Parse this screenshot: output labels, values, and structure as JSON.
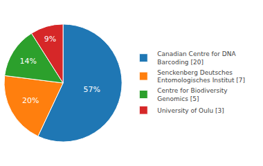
{
  "chart_data": {
    "type": "pie",
    "categories": [
      "Canadian Centre for DNA\nBarcoding [20]",
      "Senckenberg Deutsches\nEntomologisches Institut [7]",
      "Centre for Biodiversity\nGenomics [5]",
      "University of Oulu [3]"
    ],
    "values": [
      57,
      20,
      14,
      9
    ],
    "value_labels": [
      "57%",
      "20%",
      "14%",
      "9%"
    ],
    "data_labels": true,
    "legend": "right"
  }
}
